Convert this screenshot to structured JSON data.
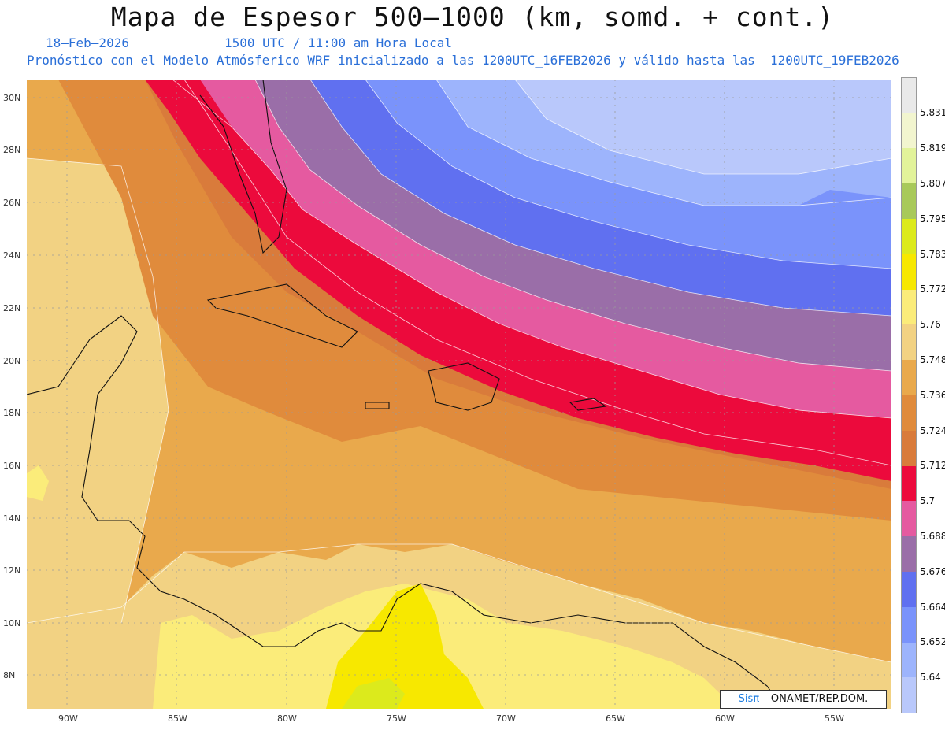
{
  "header": {
    "title": "Mapa de Espesor 500–1000 (km, somd. + cont.)",
    "date": "18–Feb–2026",
    "time": "1500 UTC / 11:00 am Hora Local",
    "forecast": "Pronóstico con el Modelo Atmósferico WRF inicializado a las 1200UTC_16FEB2026 y válido hasta las  1200UTC_19FEB2026"
  },
  "axes": {
    "lat_labels": [
      "30N",
      "28N",
      "26N",
      "24N",
      "22N",
      "20N",
      "18N",
      "16N",
      "14N",
      "12N",
      "10N",
      "8N"
    ],
    "lon_labels": [
      "90W",
      "85W",
      "80W",
      "75W",
      "70W",
      "65W",
      "60W",
      "55W"
    ]
  },
  "legend": {
    "levels": [
      "5.831",
      "5.819",
      "5.807",
      "5.795",
      "5.783",
      "5.772",
      "5.76",
      "5.748",
      "5.736",
      "5.724",
      "5.712",
      "5.7",
      "5.688",
      "5.676",
      "5.664",
      "5.652",
      "5.64"
    ],
    "colors": [
      "#e9e9e9",
      "#f2f5cf",
      "#e2f39a",
      "#a8c95a",
      "#dcea1c",
      "#f7e800",
      "#fbec7a",
      "#f2d283",
      "#e9a94c",
      "#e08b3c",
      "#d97b3b",
      "#ec0a3c",
      "#e55aa0",
      "#9a6ea8",
      "#6070f0",
      "#7a93fb",
      "#9db4fc",
      "#b9c8fb"
    ]
  },
  "credit": {
    "sis": "Sis",
    "pi": "π",
    "text": "– ONAMET/REP.DOM."
  }
}
